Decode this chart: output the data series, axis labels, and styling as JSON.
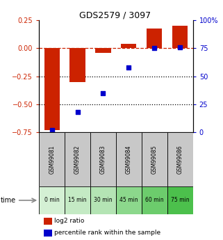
{
  "title": "GDS2579 / 3097",
  "samples": [
    "GSM99081",
    "GSM99082",
    "GSM99083",
    "GSM99084",
    "GSM99085",
    "GSM99086"
  ],
  "time_labels": [
    "0 min",
    "15 min",
    "30 min",
    "45 min",
    "60 min",
    "75 min"
  ],
  "log2_ratio": [
    -0.73,
    -0.3,
    -0.04,
    0.04,
    0.18,
    0.2
  ],
  "percentile_rank": [
    2,
    18,
    35,
    58,
    75,
    76
  ],
  "bar_color": "#cc2200",
  "dot_color": "#0000cc",
  "ylim_left": [
    -0.75,
    0.25
  ],
  "ylim_right": [
    0,
    100
  ],
  "yticks_left": [
    -0.75,
    -0.5,
    -0.25,
    0,
    0.25
  ],
  "yticks_right": [
    0,
    25,
    50,
    75,
    100
  ],
  "dashed_zero_color": "#cc2200",
  "dotted_line_color": "#000000",
  "plot_bg": "#ffffff",
  "sample_bg": "#c8c8c8",
  "time_colors": [
    "#d4f0d4",
    "#c4eac4",
    "#b4e4b4",
    "#8cd88c",
    "#6ccc6c",
    "#4cc04c"
  ],
  "legend_log2": "log2 ratio",
  "legend_pct": "percentile rank within the sample",
  "title_fontsize": 9,
  "tick_fontsize": 7,
  "bar_width": 0.6
}
